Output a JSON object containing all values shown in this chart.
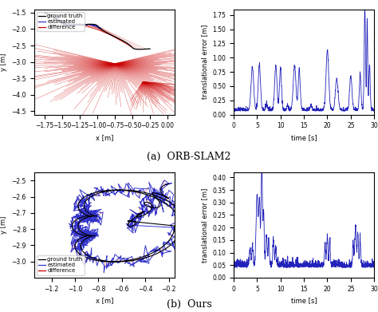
{
  "fig_width": 4.74,
  "fig_height": 3.91,
  "dpi": 100,
  "background_color": "#ffffff",
  "orb_traj_xlim": [
    -1.9,
    0.1
  ],
  "orb_traj_ylim": [
    -4.6,
    -1.4
  ],
  "orb_traj_xlabel": "x [m]",
  "orb_traj_ylabel": "y [m]",
  "orb_traj_xticks": [
    -1.75,
    -1.5,
    -1.25,
    -1.0,
    -0.75,
    -0.5,
    -0.25,
    0.0
  ],
  "orb_traj_yticks": [
    -4.5,
    -4.0,
    -3.5,
    -3.0,
    -2.5,
    -2.0,
    -1.5
  ],
  "orb_err_xlim": [
    0,
    30
  ],
  "orb_err_ylim": [
    0,
    1.85
  ],
  "orb_err_xlabel": "time [s]",
  "orb_err_ylabel": "translational error [m]",
  "orb_err_xticks": [
    0,
    5,
    10,
    15,
    20,
    25,
    30
  ],
  "orb_err_yticks": [
    0.0,
    0.25,
    0.5,
    0.75,
    1.0,
    1.25,
    1.5,
    1.75
  ],
  "ours_traj_xlim": [
    -1.35,
    -0.15
  ],
  "ours_traj_ylim": [
    -3.1,
    -2.45
  ],
  "ours_traj_xlabel": "x [m]",
  "ours_traj_ylabel": "y [m]",
  "ours_traj_xticks": [
    -1.2,
    -1.0,
    -0.8,
    -0.6,
    -0.4,
    -0.2
  ],
  "ours_traj_yticks": [
    -3.0,
    -2.9,
    -2.8,
    -2.7,
    -2.6,
    -2.5
  ],
  "ours_err_xlim": [
    0,
    30
  ],
  "ours_err_ylim": [
    0,
    0.42
  ],
  "ours_err_xlabel": "time [s]",
  "ours_err_ylabel": "translational error [m]",
  "ours_err_xticks": [
    0,
    5,
    10,
    15,
    20,
    25,
    30
  ],
  "ours_err_yticks": [
    0.0,
    0.05,
    0.1,
    0.15,
    0.2,
    0.25,
    0.3,
    0.35,
    0.4
  ],
  "color_gt": "#000000",
  "color_est": "#3333cc",
  "color_diff": "#cc0000",
  "color_err_line": "#2222bb",
  "label_gt": "ground truth",
  "label_est": "estimated",
  "label_diff": "difference",
  "caption_a": "(a)  ORB-SLAM2",
  "caption_b": "(b)  Ours",
  "tick_fontsize": 5.5,
  "label_fontsize": 6,
  "legend_fontsize": 5,
  "caption_fontsize": 9
}
